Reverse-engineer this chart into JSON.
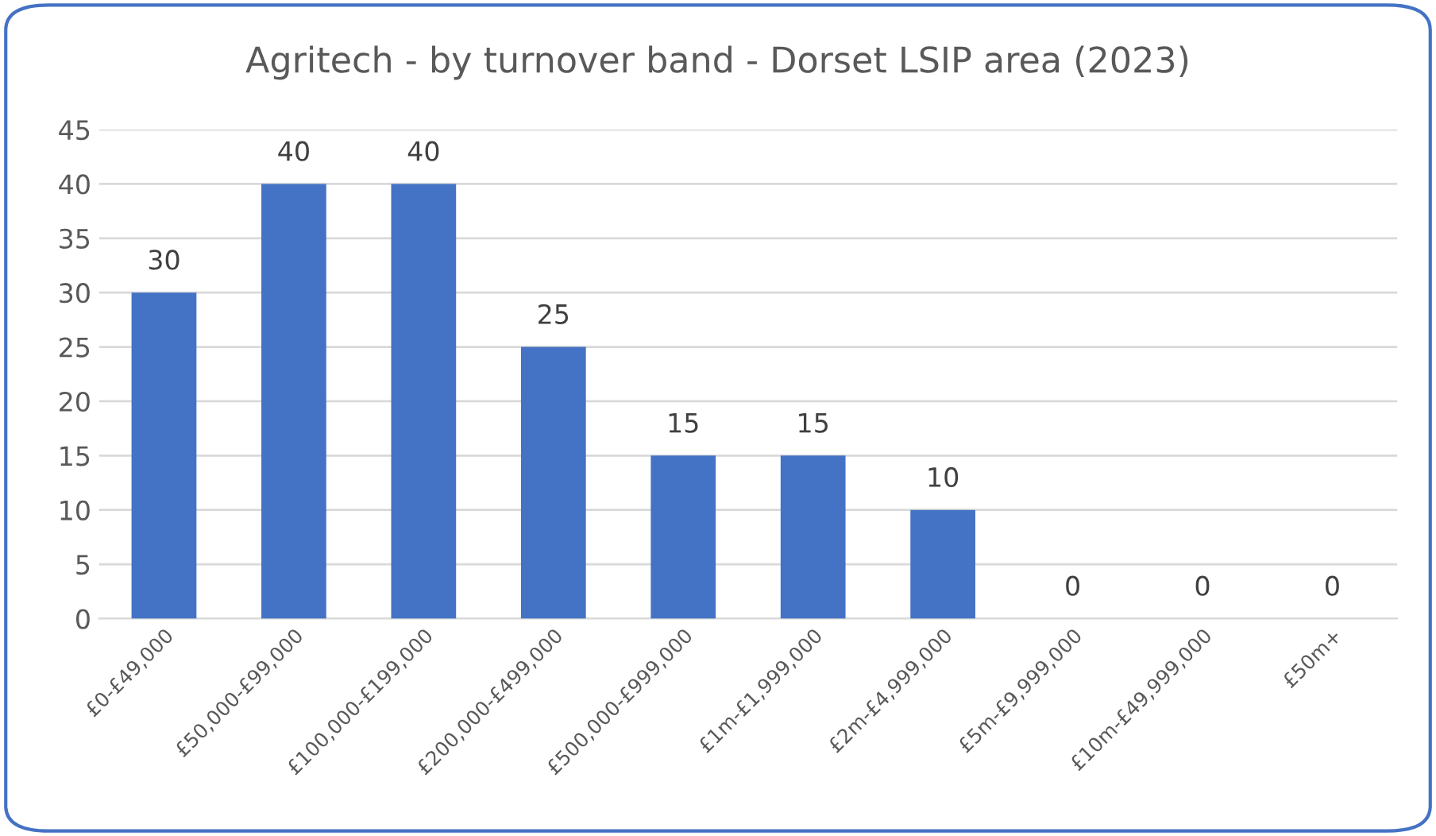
{
  "chart_data": {
    "type": "bar",
    "title": "Agritech - by turnover band - Dorset LSIP area (2023)",
    "categories": [
      "£0-£49,000",
      "£50,000-£99,000",
      "£100,000-£199,000",
      "£200,000-£499,000",
      "£500,000-£999,000",
      "£1m-£1,999,000",
      "£2m-£4,999,000",
      "£5m-£9,999,000",
      "£10m-£49,999,000",
      "£50m+"
    ],
    "values": [
      30,
      40,
      40,
      25,
      15,
      15,
      10,
      0,
      0,
      0
    ],
    "color": "#4472c4",
    "ylim": [
      0,
      45
    ],
    "yticks": [
      0,
      5,
      10,
      15,
      20,
      25,
      30,
      35,
      40,
      45
    ],
    "grid": "y",
    "data_labels": true,
    "legend": false
  }
}
